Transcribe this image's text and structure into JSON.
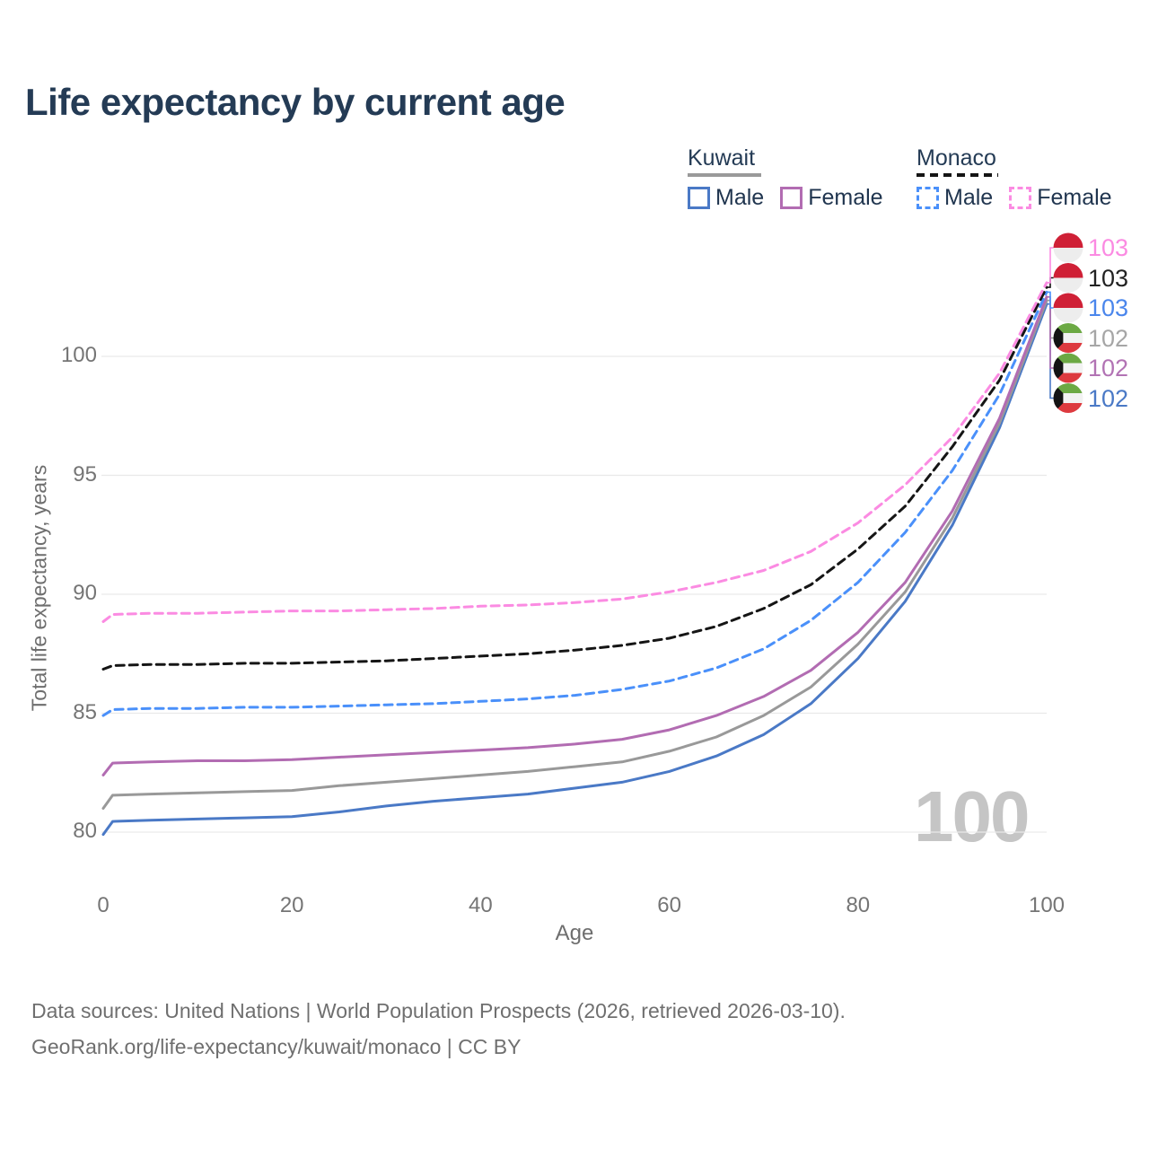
{
  "page": {
    "title": "Life expectancy by current age",
    "watermark": "100",
    "footer_line1": "Data sources: United Nations | World Population Prospects (2026, retrieved 2026-03-10).",
    "footer_line2": "GeoRank.org/life-expectancy/kuwait/monaco | CC BY"
  },
  "legend": {
    "groups": [
      {
        "country": "Kuwait",
        "line_style": "solid",
        "underline_color": "#9a9a9a",
        "items": [
          {
            "label": "Male",
            "color": "#4a79c6",
            "dashed": false
          },
          {
            "label": "Female",
            "color": "#b26cb2",
            "dashed": false
          }
        ]
      },
      {
        "country": "Monaco",
        "line_style": "dashed",
        "underline_color": "#151515",
        "items": [
          {
            "label": "Male",
            "color": "#4a90fa",
            "dashed": true
          },
          {
            "label": "Female",
            "color": "#fb8be2",
            "dashed": true
          }
        ]
      }
    ]
  },
  "chart_data": {
    "type": "line",
    "title": "Life expectancy by current age",
    "xlabel": "Age",
    "ylabel": "Total life expectancy, years",
    "x_ticks": [
      0,
      20,
      40,
      60,
      80,
      100
    ],
    "y_ticks": [
      80,
      85,
      90,
      95,
      100
    ],
    "xlim": [
      0,
      100
    ],
    "ylim": [
      79,
      103.5
    ],
    "grid": "horizontal",
    "legend_position": "top-right",
    "x": [
      0,
      1,
      5,
      10,
      15,
      20,
      25,
      30,
      35,
      40,
      45,
      50,
      55,
      60,
      65,
      70,
      75,
      80,
      85,
      90,
      95,
      100
    ],
    "series": [
      {
        "name": "Kuwait Male",
        "country": "Kuwait",
        "sex": "Male",
        "style": "solid",
        "color": "#4a79c6",
        "end_value": "102",
        "end_label_color": "#4a79c6",
        "flag": "kuwait",
        "label_row": 5,
        "values": [
          79.9,
          80.45,
          80.5,
          80.55,
          80.6,
          80.65,
          80.85,
          81.1,
          81.3,
          81.45,
          81.6,
          81.85,
          82.1,
          82.55,
          83.2,
          84.1,
          85.4,
          87.3,
          89.7,
          92.9,
          97.0,
          102.2
        ]
      },
      {
        "name": "Kuwait All",
        "country": "Kuwait",
        "sex": "All",
        "style": "solid",
        "color": "#999999",
        "end_value": "102",
        "end_label_color": "#a6a6a6",
        "flag": "kuwait",
        "label_row": 3,
        "values": [
          81.0,
          81.55,
          81.6,
          81.65,
          81.7,
          81.75,
          81.95,
          82.1,
          82.25,
          82.4,
          82.55,
          82.75,
          82.95,
          83.4,
          84.0,
          84.9,
          86.1,
          87.9,
          90.1,
          93.2,
          97.2,
          102.35
        ]
      },
      {
        "name": "Kuwait Female",
        "country": "Kuwait",
        "sex": "Female",
        "style": "solid",
        "color": "#b26cb2",
        "end_value": "102",
        "end_label_color": "#b273b4",
        "flag": "kuwait",
        "label_row": 4,
        "values": [
          82.4,
          82.9,
          82.95,
          83.0,
          83.0,
          83.05,
          83.15,
          83.25,
          83.35,
          83.45,
          83.55,
          83.7,
          83.9,
          84.3,
          84.9,
          85.7,
          86.8,
          88.4,
          90.5,
          93.5,
          97.4,
          102.5
        ]
      },
      {
        "name": "Monaco Male",
        "country": "Monaco",
        "sex": "Male",
        "style": "dashed",
        "color": "#4a90fa",
        "end_value": "103",
        "end_label_color": "#4a86ec",
        "flag": "monaco",
        "label_row": 2,
        "values": [
          84.9,
          85.15,
          85.2,
          85.2,
          85.25,
          85.25,
          85.3,
          85.35,
          85.4,
          85.5,
          85.6,
          85.75,
          86.0,
          86.35,
          86.9,
          87.7,
          88.9,
          90.5,
          92.6,
          95.2,
          98.4,
          102.7
        ]
      },
      {
        "name": "Monaco All",
        "country": "Monaco",
        "sex": "All",
        "style": "dashed",
        "color": "#151515",
        "end_value": "103",
        "end_label_color": "#222222",
        "flag": "monaco",
        "label_row": 1,
        "values": [
          86.85,
          87.0,
          87.05,
          87.05,
          87.1,
          87.1,
          87.15,
          87.2,
          87.3,
          87.4,
          87.5,
          87.65,
          87.85,
          88.15,
          88.65,
          89.4,
          90.4,
          91.9,
          93.7,
          96.2,
          99.0,
          102.9
        ]
      },
      {
        "name": "Monaco Female",
        "country": "Monaco",
        "sex": "Female",
        "style": "dashed",
        "color": "#fb8be2",
        "end_value": "103",
        "end_label_color": "#fb8ae2",
        "flag": "monaco",
        "label_row": 0,
        "values": [
          88.85,
          89.15,
          89.2,
          89.2,
          89.25,
          89.3,
          89.3,
          89.35,
          89.4,
          89.5,
          89.55,
          89.65,
          89.8,
          90.1,
          90.5,
          91.0,
          91.8,
          93.0,
          94.6,
          96.6,
          99.3,
          103.1
        ]
      }
    ],
    "flag_colors": {
      "monaco_red": "#cf2036",
      "monaco_white": "#ededed",
      "kuwait_green": "#6ca944",
      "kuwait_white": "#f2f2f2",
      "kuwait_red": "#dd3a3f",
      "kuwait_black": "#141414"
    }
  }
}
